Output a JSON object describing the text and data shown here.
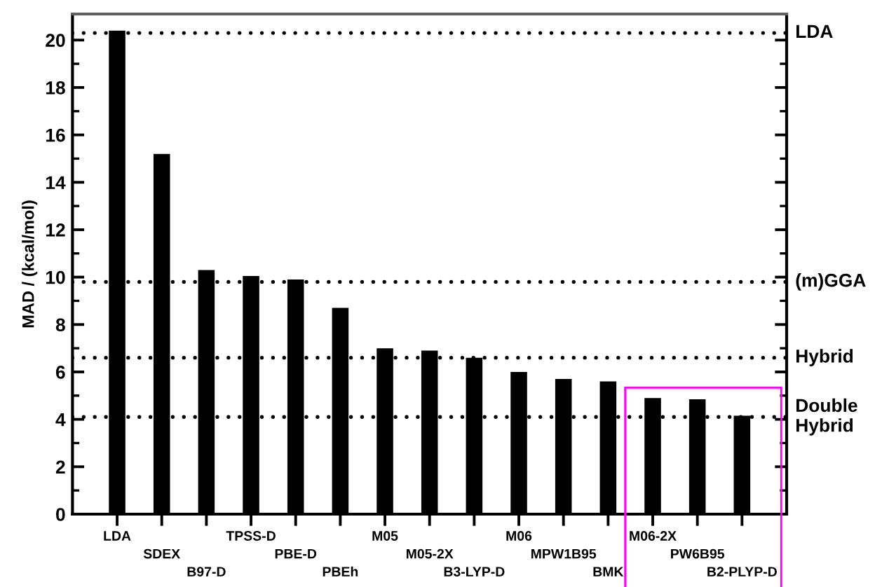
{
  "chart_data": {
    "type": "bar",
    "ylabel": "MAD / (kcal/mol)",
    "categories": [
      "LDA",
      "SDEX",
      "B97-D",
      "TPSS-D",
      "PBE-D",
      "PBEh",
      "M05",
      "M05-2X",
      "B3-LYP-D",
      "M06",
      "MPW1B95",
      "BMK",
      "M06-2X",
      "PW6B95",
      "B2-PLYP-D"
    ],
    "values": [
      20.4,
      15.2,
      10.3,
      10.05,
      9.9,
      8.7,
      7.0,
      6.9,
      6.6,
      6.0,
      5.7,
      5.6,
      4.9,
      4.85,
      4.15
    ],
    "color": "#000000",
    "ylim": [
      0,
      21.1
    ],
    "yticks": [
      0,
      {
        "value": 1,
        "label": null
      },
      2,
      {
        "value": 3,
        "label": null
      },
      4,
      {
        "value": 5,
        "label": null
      },
      6,
      {
        "value": 7,
        "label": null
      },
      8,
      {
        "value": 9,
        "label": null
      },
      10,
      {
        "value": 11,
        "label": null
      },
      12,
      {
        "value": 13,
        "label": null
      },
      14,
      {
        "value": 15,
        "label": null
      },
      16,
      {
        "value": 17,
        "label": null
      },
      18,
      {
        "value": 19,
        "label": null
      },
      20
    ],
    "ref_lines": [
      {
        "axis": "y",
        "value": 20.3,
        "label": "LDA",
        "color": "#000000",
        "line_style": "dotted"
      },
      {
        "axis": "y",
        "value": 9.8,
        "label": "(m)GGA",
        "color": "#000000",
        "line_style": "dotted"
      },
      {
        "axis": "y",
        "value": 6.6,
        "label": "Hybrid",
        "color": "#000000",
        "line_style": "dotted"
      },
      {
        "axis": "y",
        "value": 4.1,
        "label": "Double\nHybrid",
        "color": "#000000",
        "line_style": "dotted"
      }
    ]
  }
}
